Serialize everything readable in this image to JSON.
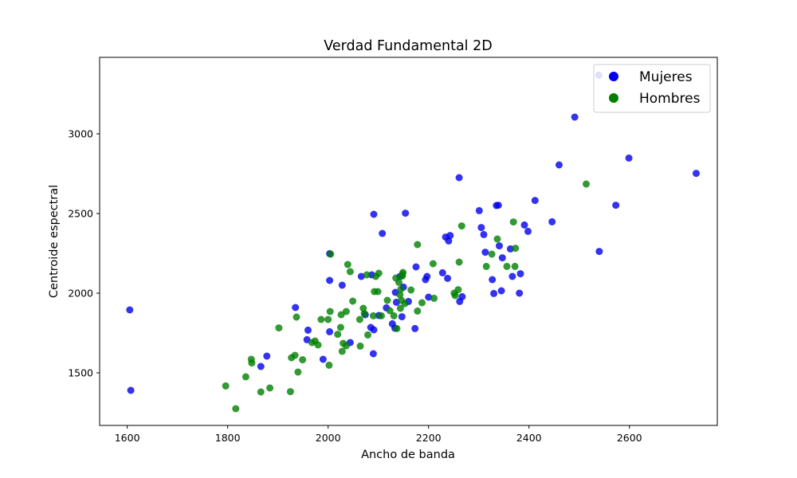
{
  "chart_data": {
    "type": "scatter",
    "title": "Verdad Fundamental 2D",
    "xlabel": "Ancho de banda",
    "ylabel": "Centroide espectral",
    "xlim": [
      1545,
      2775
    ],
    "ylim": [
      1170,
      3480
    ],
    "xticks": [
      1600,
      1800,
      2000,
      2200,
      2400,
      2600
    ],
    "yticks": [
      1500,
      2000,
      2500,
      3000
    ],
    "grid": false,
    "legend_position": "top-right",
    "series": [
      {
        "name": "Mujeres",
        "color": "#0000ee",
        "points": [
          [
            1605,
            1895
          ],
          [
            1607,
            1390
          ],
          [
            1866,
            1540
          ],
          [
            1878,
            1605
          ],
          [
            1935,
            1910
          ],
          [
            1958,
            1708
          ],
          [
            1960,
            1768
          ],
          [
            1990,
            1585
          ],
          [
            2003,
            2248
          ],
          [
            2003,
            2080
          ],
          [
            2003,
            1758
          ],
          [
            2028,
            2050
          ],
          [
            2044,
            1690
          ],
          [
            2066,
            2105
          ],
          [
            2074,
            1865
          ],
          [
            2085,
            1785
          ],
          [
            2087,
            2115
          ],
          [
            2090,
            1620
          ],
          [
            2091,
            2495
          ],
          [
            2091,
            1770
          ],
          [
            2101,
            1860
          ],
          [
            2108,
            2375
          ],
          [
            2116,
            1908
          ],
          [
            2128,
            1808
          ],
          [
            2133,
            1780
          ],
          [
            2134,
            2005
          ],
          [
            2136,
            1943
          ],
          [
            2143,
            2105
          ],
          [
            2147,
            1852
          ],
          [
            2150,
            2038
          ],
          [
            2154,
            2502
          ],
          [
            2160,
            1948
          ],
          [
            2173,
            1778
          ],
          [
            2175,
            2165
          ],
          [
            2194,
            2085
          ],
          [
            2197,
            2105
          ],
          [
            2200,
            1975
          ],
          [
            2228,
            2128
          ],
          [
            2234,
            2352
          ],
          [
            2238,
            2093
          ],
          [
            2240,
            2328
          ],
          [
            2243,
            2362
          ],
          [
            2262,
            1948
          ],
          [
            2261,
            2725
          ],
          [
            2267,
            1978
          ],
          [
            2301,
            2518
          ],
          [
            2305,
            2412
          ],
          [
            2310,
            2368
          ],
          [
            2313,
            2257
          ],
          [
            2327,
            2085
          ],
          [
            2330,
            1998
          ],
          [
            2335,
            2550
          ],
          [
            2339,
            2552
          ],
          [
            2341,
            2297
          ],
          [
            2345,
            2015
          ],
          [
            2347,
            2222
          ],
          [
            2363,
            2278
          ],
          [
            2367,
            2105
          ],
          [
            2381,
            2000
          ],
          [
            2383,
            2122
          ],
          [
            2391,
            2428
          ],
          [
            2398,
            2388
          ],
          [
            2412,
            2582
          ],
          [
            2446,
            2448
          ],
          [
            2460,
            2805
          ],
          [
            2491,
            3105
          ],
          [
            2539,
            3368
          ],
          [
            2540,
            2262
          ],
          [
            2573,
            2552
          ],
          [
            2599,
            2848
          ],
          [
            2733,
            2752
          ]
        ]
      },
      {
        "name": "Hombres",
        "color": "#008000",
        "points": [
          [
            1796,
            1418
          ],
          [
            1816,
            1275
          ],
          [
            1836,
            1475
          ],
          [
            1847,
            1585
          ],
          [
            1848,
            1562
          ],
          [
            1866,
            1380
          ],
          [
            1884,
            1405
          ],
          [
            1902,
            1782
          ],
          [
            1925,
            1382
          ],
          [
            1927,
            1595
          ],
          [
            1934,
            1610
          ],
          [
            1937,
            1850
          ],
          [
            1940,
            1505
          ],
          [
            1949,
            1582
          ],
          [
            1968,
            1690
          ],
          [
            1974,
            1700
          ],
          [
            1980,
            1675
          ],
          [
            1986,
            1835
          ],
          [
            2000,
            1835
          ],
          [
            2002,
            1548
          ],
          [
            2004,
            1885
          ],
          [
            2005,
            2245
          ],
          [
            2019,
            1742
          ],
          [
            2025,
            1785
          ],
          [
            2026,
            1865
          ],
          [
            2028,
            1635
          ],
          [
            2030,
            1685
          ],
          [
            2036,
            1670
          ],
          [
            2036,
            1885
          ],
          [
            2039,
            2180
          ],
          [
            2044,
            2135
          ],
          [
            2049,
            1950
          ],
          [
            2063,
            1835
          ],
          [
            2064,
            1668
          ],
          [
            2070,
            1905
          ],
          [
            2072,
            1872
          ],
          [
            2077,
            2115
          ],
          [
            2079,
            1738
          ],
          [
            2090,
            1858
          ],
          [
            2092,
            2010
          ],
          [
            2095,
            2105
          ],
          [
            2099,
            2010
          ],
          [
            2101,
            2125
          ],
          [
            2106,
            1858
          ],
          [
            2118,
            1955
          ],
          [
            2123,
            1890
          ],
          [
            2131,
            1858
          ],
          [
            2135,
            2095
          ],
          [
            2137,
            1778
          ],
          [
            2141,
            2068
          ],
          [
            2143,
            1990
          ],
          [
            2144,
            1905
          ],
          [
            2145,
            2025
          ],
          [
            2146,
            1955
          ],
          [
            2148,
            2118
          ],
          [
            2148,
            2108
          ],
          [
            2149,
            2130
          ],
          [
            2153,
            1935
          ],
          [
            2165,
            2020
          ],
          [
            2178,
            1888
          ],
          [
            2178,
            2305
          ],
          [
            2187,
            1940
          ],
          [
            2209,
            2185
          ],
          [
            2211,
            1968
          ],
          [
            2251,
            2000
          ],
          [
            2253,
            1985
          ],
          [
            2259,
            2022
          ],
          [
            2261,
            2195
          ],
          [
            2266,
            2422
          ],
          [
            2315,
            2168
          ],
          [
            2326,
            2245
          ],
          [
            2337,
            2340
          ],
          [
            2356,
            2168
          ],
          [
            2369,
            2447
          ],
          [
            2372,
            2168
          ],
          [
            2373,
            2282
          ],
          [
            2514,
            2685
          ]
        ]
      }
    ]
  }
}
